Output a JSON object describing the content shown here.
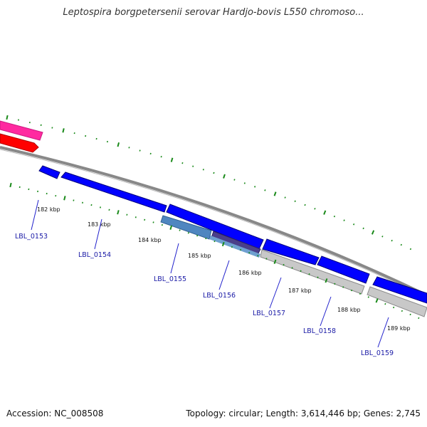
{
  "title": "Leptospira borgpetersenii serovar Hardjo-bovis L550 chromoso...",
  "footer": {
    "accession": "Accession: NC_008508",
    "topology": "Topology: circular; Length: 3,614,446 bp; Genes: 2,745"
  },
  "kbp_labels": [
    "182 kbp",
    "183 kbp",
    "184 kbp",
    "185 kbp",
    "186 kbp",
    "187 kbp",
    "188 kbp",
    "189 kbp"
  ],
  "gene_labels": [
    "LBL_0153",
    "LBL_0154",
    "LBL_0155",
    "LBL_0156",
    "LBL_0157",
    "LBL_0158",
    "LBL_0159"
  ],
  "colors": {
    "forward_cds": "#0000ff",
    "light_blue_feature": "#4f86c0",
    "purple_feature": "#4b3f8a",
    "grey_feature": "#c8c8c8",
    "pink_feature": "#ff2aa0",
    "red_feature": "#ff0000",
    "backbone": "#888888",
    "tick": "#1a8a1a",
    "label": "#1a1aa6"
  }
}
